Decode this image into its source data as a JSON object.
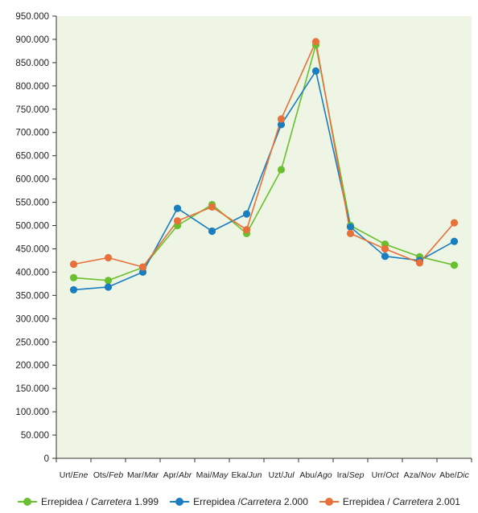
{
  "chart_data": {
    "type": "line",
    "title": "",
    "xlabel": "",
    "ylabel": "",
    "ylim": [
      0,
      950000
    ],
    "y_ticks": [
      "0",
      "50.000",
      "100.000",
      "150.000",
      "200.000",
      "250.000",
      "300.000",
      "350.000",
      "400.000",
      "450.000",
      "500.000",
      "550.000",
      "600.000",
      "650.000",
      "700.000",
      "750.000",
      "800.000",
      "850.000",
      "900.000",
      "950.000"
    ],
    "categories": [
      {
        "eu": "Urt/",
        "es": "Ene"
      },
      {
        "eu": "Ots/",
        "es": "Feb"
      },
      {
        "eu": "Mar/",
        "es": "Mar"
      },
      {
        "eu": "Apr/",
        "es": "Abr"
      },
      {
        "eu": "Mai/",
        "es": "May"
      },
      {
        "eu": "Eka/",
        "es": "Jun"
      },
      {
        "eu": "Uzt/",
        "es": "Jul"
      },
      {
        "eu": "Abu/",
        "es": "Ago"
      },
      {
        "eu": "Ira/",
        "es": "Sep"
      },
      {
        "eu": "Urr/",
        "es": "Oct"
      },
      {
        "eu": "Aza/",
        "es": "Nov"
      },
      {
        "eu": "Abe/",
        "es": "Dic"
      }
    ],
    "grid": false,
    "legend_position": "bottom",
    "background": "#eef5e4",
    "series": [
      {
        "name_prefix": "Errepidea / ",
        "name_italic": "Carretera",
        "name_suffix": " 1.999",
        "color": "#6abf2e",
        "values": [
          388000,
          382000,
          410000,
          500000,
          545000,
          483000,
          620000,
          888000,
          500000,
          460000,
          433000,
          415000
        ]
      },
      {
        "name_prefix": "Errepidea /",
        "name_italic": "Carretera",
        "name_suffix": " 2.000",
        "color": "#1a7dc0",
        "values": [
          362000,
          368000,
          400000,
          537000,
          488000,
          525000,
          717000,
          832000,
          497000,
          434000,
          425000,
          466000
        ]
      },
      {
        "name_prefix": "Errepidea / ",
        "name_italic": "Carretera",
        "name_suffix": " 2.001",
        "color": "#e8703a",
        "values": [
          417000,
          431000,
          411000,
          510000,
          540000,
          491000,
          729000,
          895000,
          483000,
          450000,
          420000,
          506000
        ]
      }
    ]
  }
}
